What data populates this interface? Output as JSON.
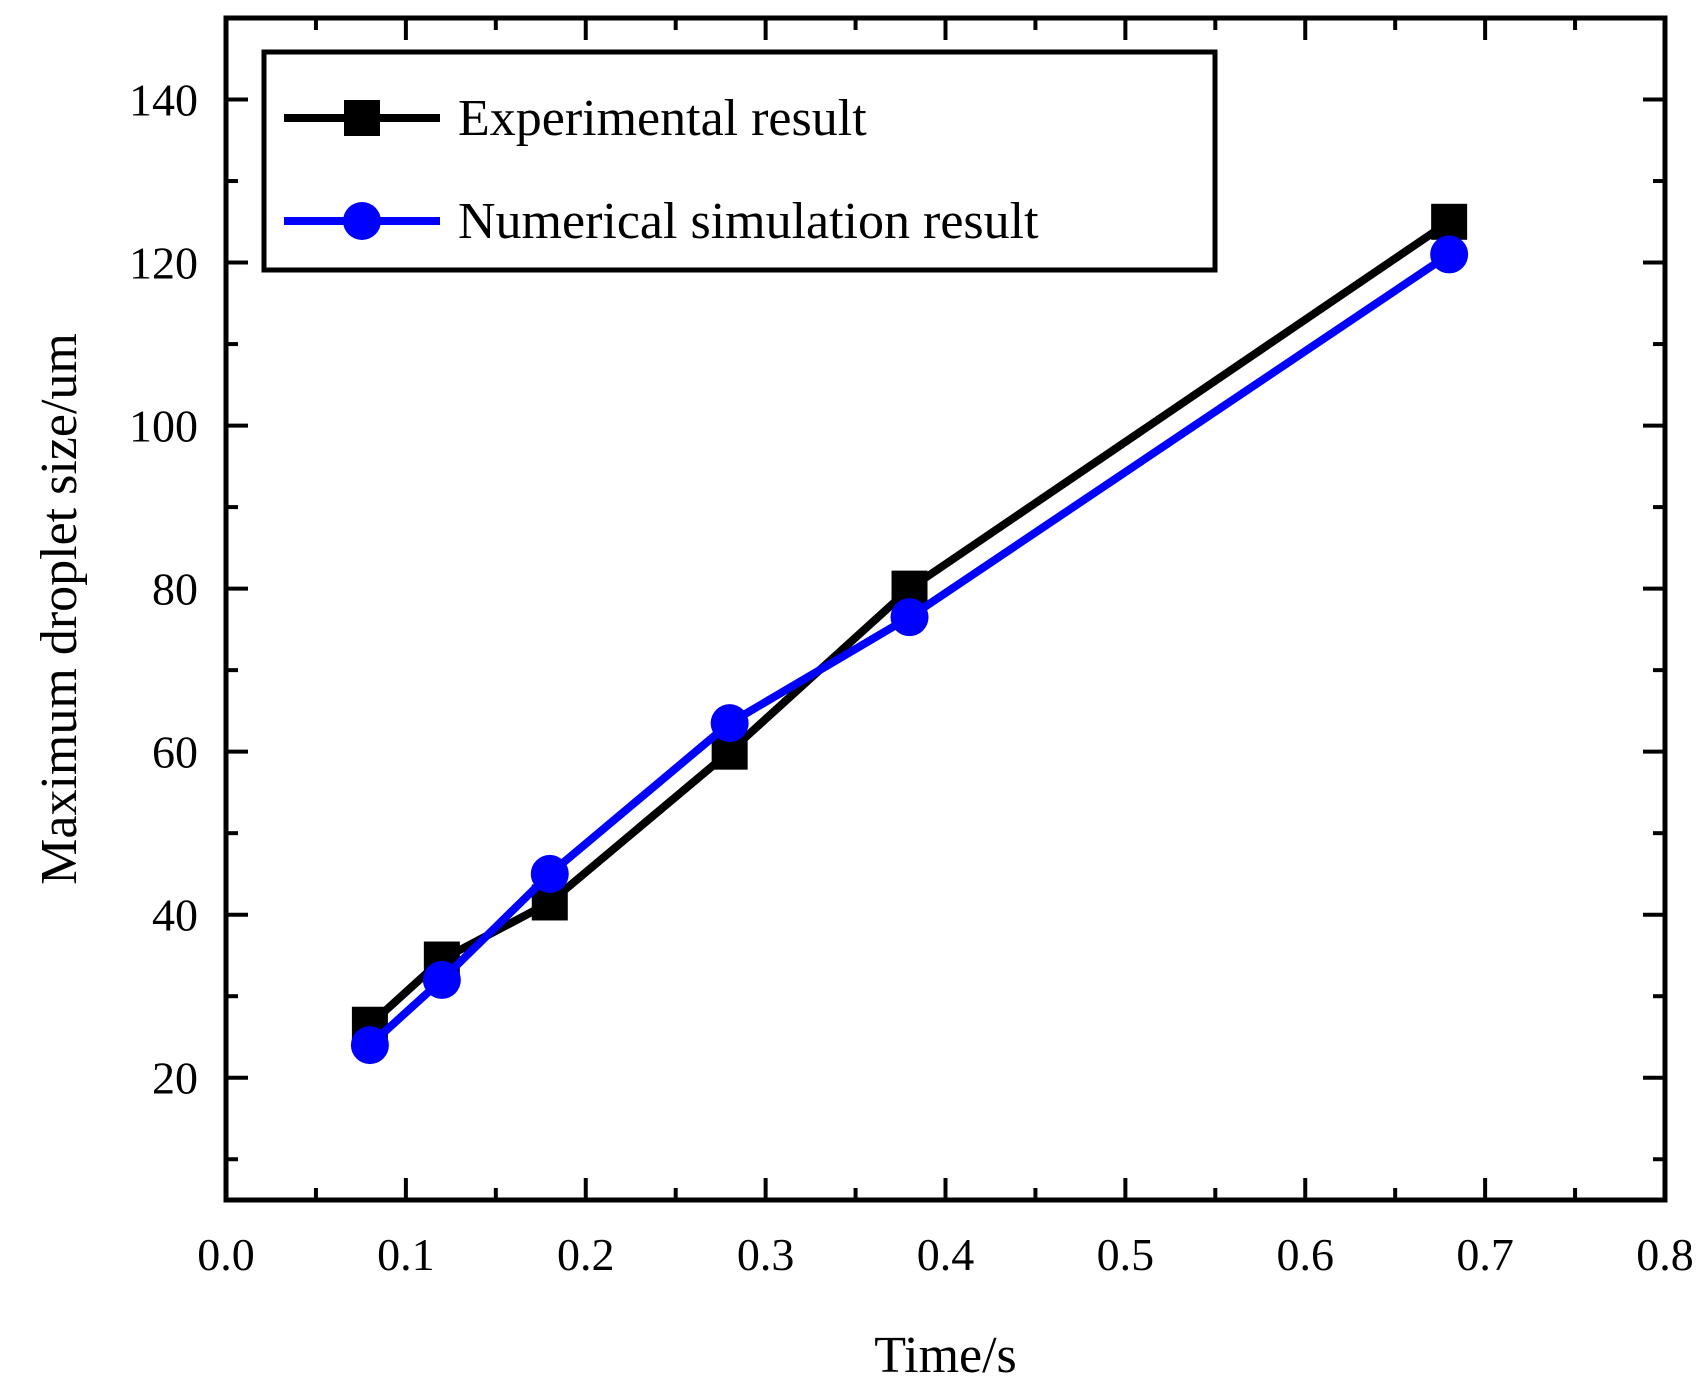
{
  "chart_data": {
    "type": "line",
    "title": "",
    "xlabel": "Time/s",
    "ylabel": "Maximum droplet size/um",
    "xlim": [
      0.0,
      0.8
    ],
    "ylim": [
      5,
      150
    ],
    "x_ticks": [
      "0.0",
      "0.1",
      "0.2",
      "0.3",
      "0.4",
      "0.5",
      "0.6",
      "0.7",
      "0.8"
    ],
    "x_tick_values": [
      0.0,
      0.1,
      0.2,
      0.3,
      0.4,
      0.5,
      0.6,
      0.7,
      0.8
    ],
    "y_ticks": [
      "20",
      "40",
      "60",
      "80",
      "100",
      "120",
      "140"
    ],
    "y_tick_values": [
      20,
      40,
      60,
      80,
      100,
      120,
      140
    ],
    "grid": false,
    "legend_position": "top-left",
    "series": [
      {
        "name": "Experimental result",
        "color": "#000000",
        "marker": "square",
        "x": [
          0.08,
          0.12,
          0.18,
          0.28,
          0.38,
          0.68
        ],
        "y": [
          26.5,
          34.5,
          41.5,
          60,
          80,
          125
        ]
      },
      {
        "name": "Numerical simulation result",
        "color": "#0000ff",
        "marker": "circle",
        "x": [
          0.08,
          0.12,
          0.18,
          0.28,
          0.38,
          0.68
        ],
        "y": [
          24,
          32,
          45,
          63.5,
          76.5,
          121
        ]
      }
    ]
  }
}
